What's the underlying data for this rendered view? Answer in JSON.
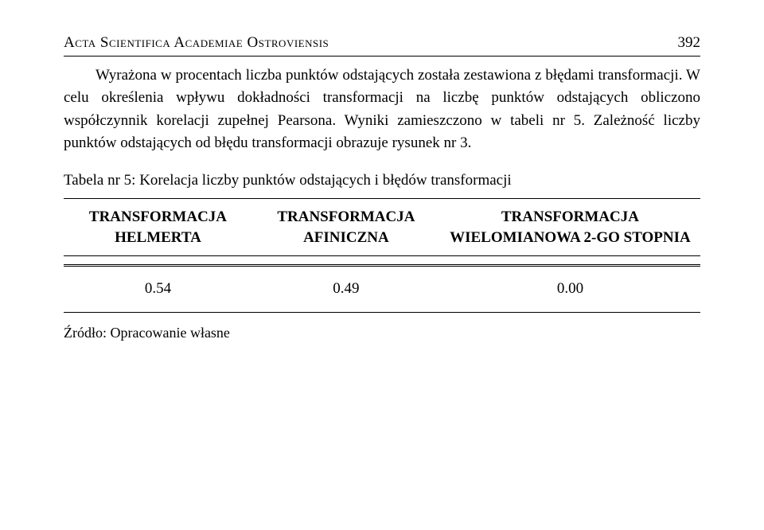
{
  "header": {
    "title": "Acta Scientifica Academiae Ostroviensis",
    "page_number": "392"
  },
  "paragraph": "Wyrażona w procentach liczba punktów odstających została zestawiona z błędami transformacji. W celu określenia wpływu dokładności transformacji na liczbę punktów odstających obliczono współczynnik korelacji zupełnej Pearsona. Wyniki zamieszczono w tabeli nr 5. Zależność liczby punktów odstających od błędu transformacji obrazuje rysunek nr 3.",
  "table": {
    "caption": "Tabela nr 5: Korelacja liczby punktów odstających i błędów transformacji",
    "columns": [
      "TRANSFORMACJA HELMERTA",
      "TRANSFORMACJA AFINICZNA",
      "TRANSFORMACJA WIELOMIANOWA 2-GO STOPNIA"
    ],
    "rows": [
      [
        "0.54",
        "0.49",
        "0.00"
      ]
    ]
  },
  "source": "Źródło: Opracowanie własne"
}
